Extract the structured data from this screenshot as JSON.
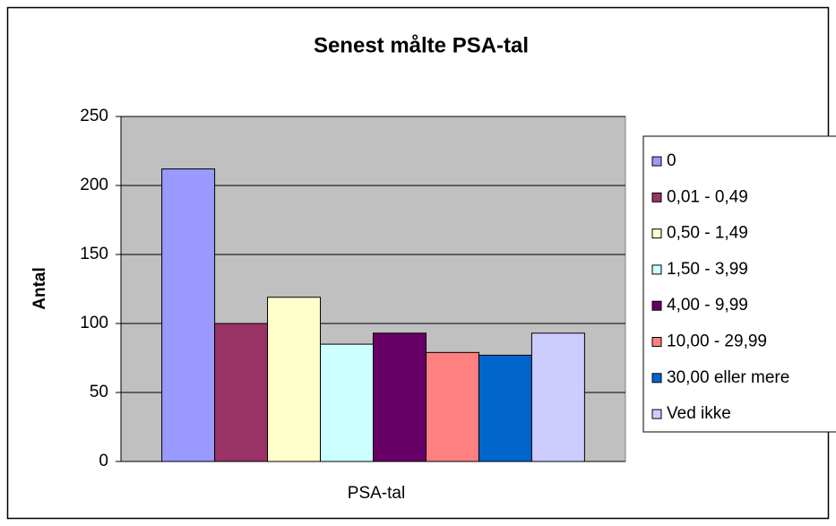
{
  "chart_data": {
    "type": "bar",
    "title": "Senest målte PSA-tal",
    "x_label": "PSA-tal",
    "y_label": "Antal",
    "categories": [
      "PSA-tal"
    ],
    "series": [
      {
        "name": "0",
        "color": "#9999ff",
        "values": [
          212
        ]
      },
      {
        "name": "0,01 - 0,49",
        "color": "#993366",
        "values": [
          100
        ]
      },
      {
        "name": "0,50 - 1,49",
        "color": "#ffffcc",
        "values": [
          119
        ]
      },
      {
        "name": "1,50 - 3,99",
        "color": "#ccffff",
        "values": [
          85
        ]
      },
      {
        "name": "4,00 - 9,99",
        "color": "#660066",
        "values": [
          93
        ]
      },
      {
        "name": "10,00 - 29,99",
        "color": "#ff8080",
        "values": [
          79
        ]
      },
      {
        "name": "30,00 eller mere",
        "color": "#0066cc",
        "values": [
          77
        ]
      },
      {
        "name": "Ved ikke",
        "color": "#ccccff",
        "values": [
          93
        ]
      }
    ],
    "ylim": [
      0,
      250
    ],
    "yticks": [
      0,
      50,
      100,
      150,
      200,
      250
    ],
    "grid": true,
    "legend": "right"
  }
}
